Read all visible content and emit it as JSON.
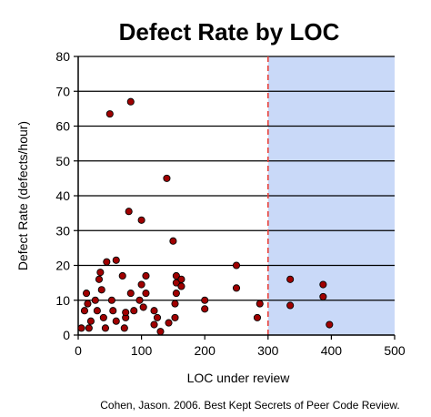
{
  "chart_data": {
    "type": "scatter",
    "title": "Defect Rate by LOC",
    "xlabel": "LOC under review",
    "ylabel": "Defect Rate (defects/hour)",
    "source": "Cohen, Jason. 2006. Best Kept Secrets of Peer Code Review.",
    "xlim": [
      0,
      500
    ],
    "ylim": [
      0,
      80
    ],
    "xticks": [
      0,
      100,
      200,
      300,
      400,
      500
    ],
    "yticks": [
      0,
      10,
      20,
      30,
      40,
      50,
      60,
      70,
      80
    ],
    "grid": "horizontal",
    "threshold_x": 300,
    "shaded_region": [
      300,
      500
    ],
    "colors": {
      "marker_fill": "#a00000",
      "marker_stroke": "#000000",
      "threshold_line": "#e8423b",
      "shaded_region": "#c9d9f8",
      "grid": "#000000"
    },
    "points": [
      {
        "x": 5,
        "y": 2
      },
      {
        "x": 10,
        "y": 7
      },
      {
        "x": 13,
        "y": 12
      },
      {
        "x": 15,
        "y": 9
      },
      {
        "x": 17,
        "y": 2
      },
      {
        "x": 20,
        "y": 4
      },
      {
        "x": 27,
        "y": 10
      },
      {
        "x": 30,
        "y": 7
      },
      {
        "x": 33,
        "y": 16
      },
      {
        "x": 35,
        "y": 18
      },
      {
        "x": 37,
        "y": 13
      },
      {
        "x": 40,
        "y": 5
      },
      {
        "x": 43,
        "y": 2
      },
      {
        "x": 45,
        "y": 21
      },
      {
        "x": 50,
        "y": 63.5
      },
      {
        "x": 53,
        "y": 10
      },
      {
        "x": 55,
        "y": 7
      },
      {
        "x": 60,
        "y": 21.5
      },
      {
        "x": 60,
        "y": 4
      },
      {
        "x": 70,
        "y": 17
      },
      {
        "x": 73,
        "y": 2
      },
      {
        "x": 75,
        "y": 5
      },
      {
        "x": 75,
        "y": 6.5
      },
      {
        "x": 80,
        "y": 35.5
      },
      {
        "x": 83,
        "y": 12
      },
      {
        "x": 83,
        "y": 67
      },
      {
        "x": 88,
        "y": 7
      },
      {
        "x": 97,
        "y": 10
      },
      {
        "x": 100,
        "y": 33
      },
      {
        "x": 100,
        "y": 14.5
      },
      {
        "x": 103,
        "y": 8
      },
      {
        "x": 107,
        "y": 12
      },
      {
        "x": 107,
        "y": 17
      },
      {
        "x": 120,
        "y": 7
      },
      {
        "x": 120,
        "y": 3
      },
      {
        "x": 125,
        "y": 5
      },
      {
        "x": 130,
        "y": 1
      },
      {
        "x": 140,
        "y": 45
      },
      {
        "x": 143,
        "y": 3.5
      },
      {
        "x": 150,
        "y": 27
      },
      {
        "x": 153,
        "y": 5
      },
      {
        "x": 153,
        "y": 9
      },
      {
        "x": 155,
        "y": 17
      },
      {
        "x": 155,
        "y": 15
      },
      {
        "x": 155,
        "y": 12
      },
      {
        "x": 163,
        "y": 16
      },
      {
        "x": 163,
        "y": 14
      },
      {
        "x": 200,
        "y": 10
      },
      {
        "x": 200,
        "y": 7.5
      },
      {
        "x": 250,
        "y": 20
      },
      {
        "x": 250,
        "y": 13.5
      },
      {
        "x": 283,
        "y": 5
      },
      {
        "x": 287,
        "y": 9
      },
      {
        "x": 335,
        "y": 16
      },
      {
        "x": 335,
        "y": 8.5
      },
      {
        "x": 387,
        "y": 14.5
      },
      {
        "x": 387,
        "y": 11
      },
      {
        "x": 397,
        "y": 3
      }
    ]
  }
}
